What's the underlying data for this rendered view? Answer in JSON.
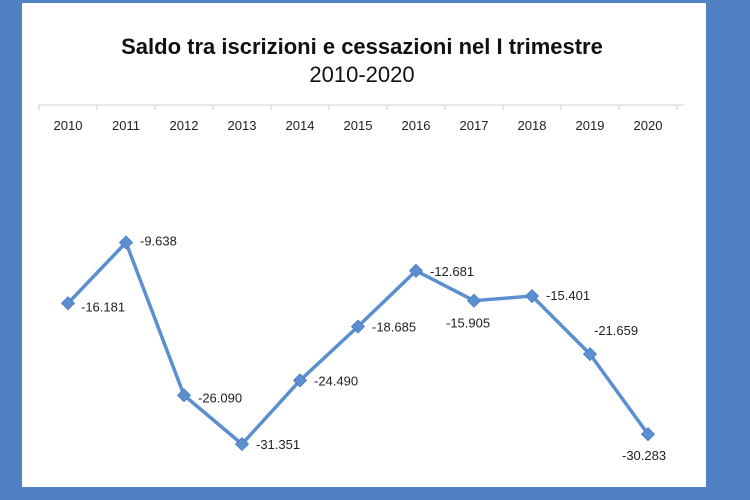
{
  "chart_data": {
    "type": "line",
    "title": "Saldo tra iscrizioni e cessazioni nel I trimestre",
    "subtitle": "2010-2020",
    "categories": [
      "2010",
      "2011",
      "2012",
      "2013",
      "2014",
      "2015",
      "2016",
      "2017",
      "2018",
      "2019",
      "2020"
    ],
    "series": [
      {
        "values": [
          -16181,
          -9638,
          -26090,
          -31351,
          -24490,
          -18685,
          -12681,
          -15905,
          -15401,
          -21659,
          -30283
        ],
        "labels": [
          "-16.181",
          "-9.638",
          "-26.090",
          "-31.351",
          "-24.490",
          "-18.685",
          "-12.681",
          "-15.905",
          "-15.401",
          "-21.659",
          "-30.283"
        ],
        "color": "#5b8fd0"
      }
    ],
    "ylim": [
      -35000,
      0
    ],
    "x_axis_position": "top",
    "grid": false,
    "legend": "none"
  },
  "colors": {
    "background": "#4f81c3",
    "panel": "#ffffff",
    "axis": "#d0d0d0"
  }
}
